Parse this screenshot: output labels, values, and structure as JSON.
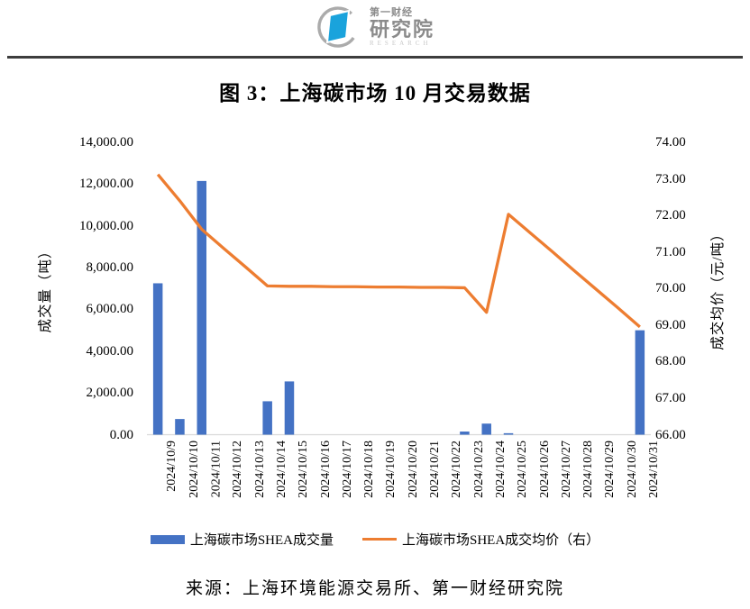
{
  "header": {
    "brand_top": "第一财经",
    "brand_main": "研究院",
    "brand_sub": "RESEARCH"
  },
  "title": "图 3：上海碳市场 10 月交易数据",
  "chart_data": {
    "type": "bar",
    "subtype": "combo-bar-line-dual-axis",
    "title": "图 3：上海碳市场 10 月交易数据",
    "grid": false,
    "legend_position": "bottom",
    "categories": [
      "2024/10/9",
      "2024/10/10",
      "2024/10/11",
      "2024/10/12",
      "2024/10/13",
      "2024/10/14",
      "2024/10/15",
      "2024/10/16",
      "2024/10/17",
      "2024/10/18",
      "2024/10/19",
      "2024/10/20",
      "2024/10/21",
      "2024/10/22",
      "2024/10/23",
      "2024/10/24",
      "2024/10/25",
      "2024/10/26",
      "2024/10/27",
      "2024/10/28",
      "2024/10/29",
      "2024/10/30",
      "2024/10/31"
    ],
    "series": [
      {
        "name": "上海碳市场SHEA成交量",
        "type": "bar",
        "axis": "left",
        "color": "#4472C4",
        "values": [
          7250,
          750,
          12150,
          0,
          0,
          1600,
          2550,
          0,
          0,
          0,
          0,
          0,
          0,
          0,
          150,
          530,
          70,
          0,
          0,
          0,
          0,
          0,
          5000
        ]
      },
      {
        "name": "上海碳市场SHEA成交均价（右）",
        "type": "line",
        "axis": "right",
        "color": "#ED7D31",
        "values": [
          73.12,
          72.4,
          71.62,
          71.1,
          70.59,
          70.07,
          70.06,
          70.06,
          70.05,
          70.05,
          70.04,
          70.04,
          70.03,
          70.03,
          70.02,
          69.35,
          72.03,
          71.52,
          71.01,
          70.49,
          69.98,
          69.47,
          68.95
        ]
      }
    ],
    "left_axis": {
      "label": "成交量（吨）",
      "min": 0,
      "max": 14000,
      "step": 2000,
      "tick_labels": [
        "14,000.00",
        "12,000.00",
        "10,000.00",
        "8,000.00",
        "6,000.00",
        "4,000.00",
        "2,000.00",
        "0.00"
      ]
    },
    "right_axis": {
      "label": "成交均价（元/吨）",
      "min": 66,
      "max": 74,
      "step": 1,
      "tick_labels": [
        "74.00",
        "73.00",
        "72.00",
        "71.00",
        "70.00",
        "69.00",
        "68.00",
        "67.00",
        "66.00"
      ]
    },
    "axis_line_color": "#d9d9d9"
  },
  "legend": {
    "items": [
      {
        "label": "上海碳市场SHEA成交量",
        "swatch": "bar",
        "color": "#4472C4"
      },
      {
        "label": "上海碳市场SHEA成交均价（右）",
        "swatch": "line",
        "color": "#ED7D31"
      }
    ]
  },
  "source": "来源：上海环境能源交易所、第一财经研究院",
  "colors": {
    "bar": "#4472C4",
    "line": "#ED7D31",
    "divider": "#3d3d3d",
    "logo_blue": "#1aa3dc",
    "logo_gray": "#ababab"
  }
}
